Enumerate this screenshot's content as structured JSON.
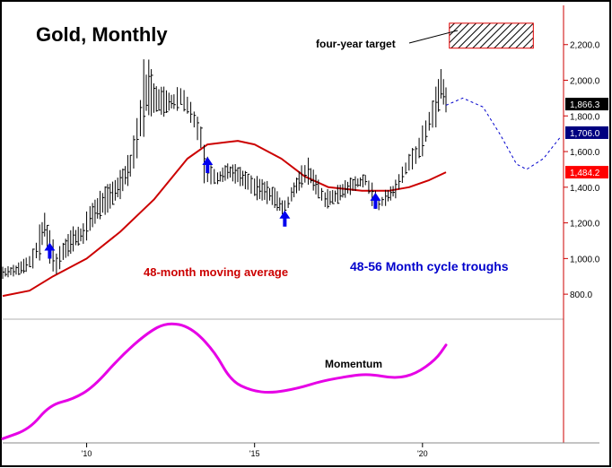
{
  "chart_data": {
    "type": "line",
    "title": "Gold, Monthly",
    "subtitle": "",
    "xlabel": "",
    "ylabel": "",
    "x_ticks": [
      {
        "label": "'10",
        "year": 2010.0
      },
      {
        "label": "'15",
        "year": 2015.0
      },
      {
        "label": "'20",
        "year": 2020.0
      }
    ],
    "xlim": [
      2007.5,
      2024.2
    ],
    "y_ticks": [
      {
        "label": "800.0",
        "value": 800
      },
      {
        "label": "1,000.0",
        "value": 1000
      },
      {
        "label": "1,200.0",
        "value": 1200
      },
      {
        "label": "1,400.0",
        "value": 1400
      },
      {
        "label": "1,600.0",
        "value": 1600
      },
      {
        "label": "1,800.0",
        "value": 1800
      },
      {
        "label": "2,000.0",
        "value": 2000
      },
      {
        "label": "2,200.0",
        "value": 2200
      }
    ],
    "ylim": [
      690,
      2420
    ],
    "price_badges": [
      {
        "label": "1,866.3",
        "value": 1866.3,
        "color": "#000000"
      },
      {
        "label": "1,706.0",
        "value": 1706.0,
        "color": "#000080"
      },
      {
        "label": "1,484.2",
        "value": 1484.2,
        "color": "#ff0000"
      }
    ],
    "series": [
      {
        "name": "Gold",
        "style": "ohlc-bars",
        "color": "#000000",
        "points": [
          [
            2007.5,
            880,
            960
          ],
          [
            2007.9,
            900,
            970
          ],
          [
            2008.2,
            920,
            1010
          ],
          [
            2008.4,
            950,
            1050
          ],
          [
            2008.6,
            1000,
            1180
          ],
          [
            2008.75,
            1120,
            1260
          ],
          [
            2008.9,
            950,
            1180
          ],
          [
            2009.1,
            880,
            1060
          ],
          [
            2009.3,
            960,
            1120
          ],
          [
            2009.6,
            1040,
            1180
          ],
          [
            2009.9,
            1080,
            1200
          ],
          [
            2010.1,
            1140,
            1310
          ],
          [
            2010.4,
            1220,
            1380
          ],
          [
            2010.7,
            1280,
            1420
          ],
          [
            2011.0,
            1330,
            1500
          ],
          [
            2011.3,
            1420,
            1620
          ],
          [
            2011.5,
            1550,
            1800
          ],
          [
            2011.7,
            1700,
            2100
          ],
          [
            2011.85,
            1800,
            2120
          ],
          [
            2012.0,
            1780,
            2020
          ],
          [
            2012.3,
            1800,
            1960
          ],
          [
            2012.6,
            1820,
            1940
          ],
          [
            2012.8,
            1840,
            1980
          ],
          [
            2013.0,
            1800,
            1920
          ],
          [
            2013.2,
            1700,
            1860
          ],
          [
            2013.4,
            1600,
            1760
          ],
          [
            2013.5,
            1420,
            1640
          ],
          [
            2013.7,
            1380,
            1560
          ],
          [
            2013.9,
            1400,
            1500
          ],
          [
            2014.2,
            1440,
            1540
          ],
          [
            2014.5,
            1420,
            1520
          ],
          [
            2014.8,
            1380,
            1480
          ],
          [
            2015.0,
            1340,
            1460
          ],
          [
            2015.3,
            1320,
            1440
          ],
          [
            2015.6,
            1280,
            1400
          ],
          [
            2015.9,
            1220,
            1320
          ],
          [
            2016.1,
            1300,
            1420
          ],
          [
            2016.4,
            1400,
            1520
          ],
          [
            2016.6,
            1420,
            1560
          ],
          [
            2016.9,
            1320,
            1460
          ],
          [
            2017.1,
            1280,
            1380
          ],
          [
            2017.4,
            1300,
            1400
          ],
          [
            2017.7,
            1340,
            1440
          ],
          [
            2018.0,
            1380,
            1460
          ],
          [
            2018.3,
            1400,
            1480
          ],
          [
            2018.5,
            1300,
            1420
          ],
          [
            2018.7,
            1260,
            1340
          ],
          [
            2018.9,
            1300,
            1380
          ],
          [
            2019.2,
            1340,
            1440
          ],
          [
            2019.4,
            1420,
            1520
          ],
          [
            2019.6,
            1480,
            1600
          ],
          [
            2019.8,
            1520,
            1640
          ],
          [
            2020.0,
            1580,
            1740
          ],
          [
            2020.2,
            1680,
            1860
          ],
          [
            2020.4,
            1740,
            1960
          ],
          [
            2020.55,
            1880,
            2080
          ],
          [
            2020.7,
            1820,
            1960
          ]
        ]
      },
      {
        "name": "48-month moving average",
        "style": "line",
        "color": "#cc0000",
        "points": [
          [
            2007.5,
            790
          ],
          [
            2008.3,
            820
          ],
          [
            2009.0,
            900
          ],
          [
            2010.0,
            1000
          ],
          [
            2011.0,
            1150
          ],
          [
            2012.0,
            1330
          ],
          [
            2013.0,
            1560
          ],
          [
            2013.6,
            1640
          ],
          [
            2014.5,
            1660
          ],
          [
            2015.0,
            1640
          ],
          [
            2015.8,
            1560
          ],
          [
            2016.5,
            1460
          ],
          [
            2017.2,
            1400
          ],
          [
            2018.2,
            1380
          ],
          [
            2019.0,
            1380
          ],
          [
            2019.6,
            1400
          ],
          [
            2020.2,
            1440
          ],
          [
            2020.7,
            1484
          ]
        ]
      },
      {
        "name": "Projection",
        "style": "dashed",
        "color": "#0000cc",
        "points": [
          [
            2020.7,
            1860
          ],
          [
            2021.2,
            1900
          ],
          [
            2021.8,
            1850
          ],
          [
            2022.3,
            1700
          ],
          [
            2022.8,
            1530
          ],
          [
            2023.1,
            1500
          ],
          [
            2023.6,
            1560
          ],
          [
            2024.1,
            1680
          ]
        ]
      }
    ],
    "cycle_troughs": [
      2008.9,
      2013.6,
      2015.9,
      2018.6
    ],
    "target_zone": {
      "x": [
        2020.8,
        2023.3
      ],
      "y": [
        2180,
        2320
      ]
    },
    "momentum": {
      "name": "Momentum",
      "color": "#e600e6",
      "ylim": [
        0,
        100
      ],
      "points": [
        [
          2007.5,
          2
        ],
        [
          2008.3,
          10
        ],
        [
          2008.9,
          30
        ],
        [
          2009.6,
          35
        ],
        [
          2010.2,
          45
        ],
        [
          2011.0,
          70
        ],
        [
          2011.8,
          90
        ],
        [
          2012.4,
          99
        ],
        [
          2013.1,
          95
        ],
        [
          2013.8,
          75
        ],
        [
          2014.3,
          50
        ],
        [
          2014.9,
          42
        ],
        [
          2015.5,
          40
        ],
        [
          2016.3,
          44
        ],
        [
          2017.0,
          50
        ],
        [
          2017.8,
          54
        ],
        [
          2018.4,
          56
        ],
        [
          2019.2,
          52
        ],
        [
          2019.8,
          56
        ],
        [
          2020.4,
          68
        ],
        [
          2020.7,
          80
        ]
      ]
    },
    "annotations": [
      {
        "text": "four-year target",
        "color": "#000000"
      },
      {
        "text": "48-month moving average",
        "color": "#cc0000"
      },
      {
        "text": "48-56 Month cycle troughs",
        "color": "#0000cc"
      },
      {
        "text": "Momentum",
        "color": "#000000"
      }
    ],
    "grid": false,
    "legend": "none"
  }
}
